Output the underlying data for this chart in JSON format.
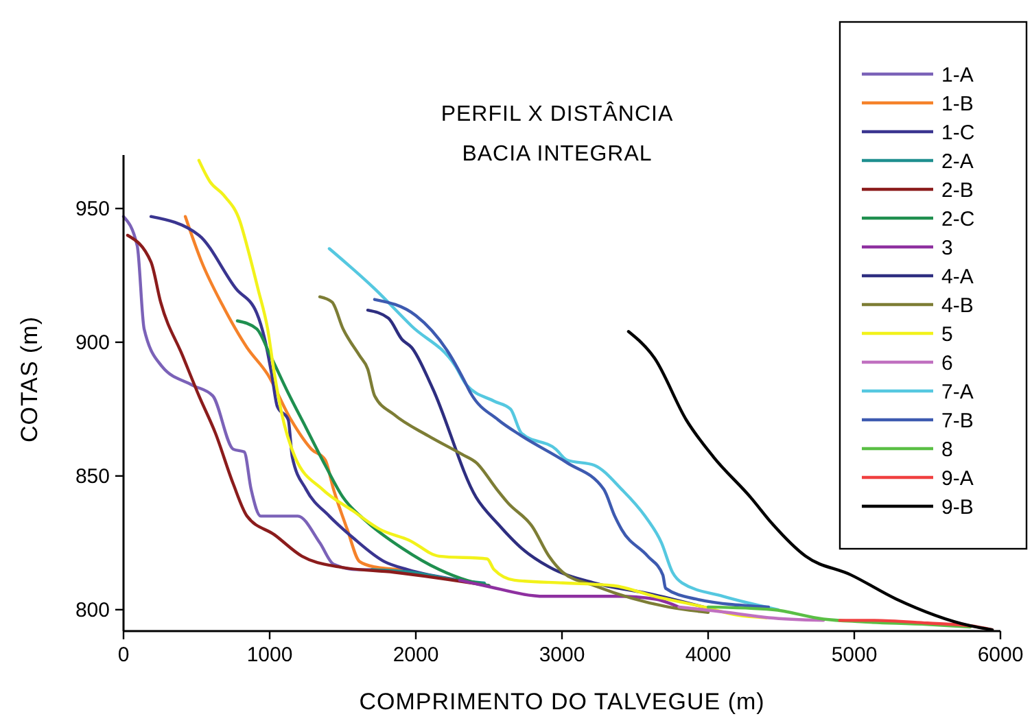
{
  "chart_data": {
    "type": "line",
    "title": "PERFIL X DISTÂNCIA",
    "subtitle": "BACIA INTEGRAL",
    "xlabel": "COMPRIMENTO DO TALVEGUE (m)",
    "ylabel": "COTAS (m)",
    "xlim": [
      0,
      6000
    ],
    "xticks": [
      0,
      1000,
      2000,
      3000,
      4000,
      5000,
      6000
    ],
    "ylim": [
      792,
      970
    ],
    "yticks": [
      800,
      850,
      900,
      950
    ],
    "grid": false,
    "legend": "top right",
    "series": [
      {
        "name": "1-A",
        "color": "#7b62b8",
        "x": [
          0,
          94,
          141,
          263,
          469,
          610,
          751,
          826,
          873,
          939,
          1192,
          1343,
          1437,
          1596,
          1906
        ],
        "values": [
          947,
          936,
          905,
          891,
          884,
          880,
          860,
          859,
          845,
          835,
          835,
          825,
          817,
          815,
          815
        ]
      },
      {
        "name": "1-B",
        "color": "#f5822a",
        "x": [
          423,
          535,
          676,
          845,
          986,
          1146,
          1286,
          1380,
          1437,
          1531,
          1615,
          1718,
          1906
        ],
        "values": [
          947,
          930,
          914,
          898,
          888,
          871,
          860,
          856,
          845,
          830,
          818,
          816,
          815
        ]
      },
      {
        "name": "1-C",
        "color": "#3a3590",
        "x": [
          188,
          516,
          770,
          911,
          967,
          1014,
          1052,
          1127,
          1155,
          1249,
          1408,
          1568,
          1784,
          1944,
          2300
        ],
        "values": [
          947,
          940,
          920,
          911,
          901,
          888,
          876,
          871,
          857,
          845,
          835,
          827,
          818,
          815,
          811
        ]
      },
      {
        "name": "2-A",
        "color": "#1f8f8f",
        "x": [
          1700,
          1972,
          2282,
          2469
        ],
        "values": [
          815,
          814,
          811,
          810
        ]
      },
      {
        "name": "2-B",
        "color": "#8b1c1c",
        "x": [
          28,
          188,
          254,
          404,
          516,
          629,
          751,
          845,
          1033,
          1221,
          1474,
          1850,
          2500
        ],
        "values": [
          940,
          930,
          915,
          895,
          880,
          866,
          847,
          835,
          828,
          820,
          816,
          814,
          809
        ]
      },
      {
        "name": "2-C",
        "color": "#1f8f4f",
        "x": [
          779,
          911,
          1005,
          1127,
          1249,
          1380,
          1502,
          1662,
          1906,
          2160,
          2347,
          2500
        ],
        "values": [
          908,
          905,
          895,
          881,
          868,
          854,
          842,
          833,
          823,
          815,
          811,
          809
        ]
      },
      {
        "name": "3",
        "color": "#8e30a0",
        "x": [
          2300,
          2469,
          2882,
          3380,
          3634,
          3800
        ],
        "values": [
          811,
          809,
          805,
          805,
          804,
          801
        ]
      },
      {
        "name": "4-A",
        "color": "#2e2e80",
        "x": [
          1671,
          1812,
          1906,
          1972,
          2113,
          2413,
          2563,
          2723,
          2911,
          3221,
          3596,
          4038
        ],
        "values": [
          912,
          909,
          901,
          898,
          883,
          842,
          832,
          823,
          816,
          810,
          806,
          800
        ]
      },
      {
        "name": "4-B",
        "color": "#7d7d35",
        "x": [
          1343,
          1427,
          1502,
          1615,
          1671,
          1718,
          1850,
          2085,
          2319,
          2413,
          2554,
          2629,
          2798,
          2911,
          3005,
          3221,
          3728,
          4000
        ],
        "values": [
          917,
          915,
          905,
          895,
          890,
          880,
          873,
          865,
          858,
          855,
          845,
          840,
          831,
          820,
          814,
          809,
          801,
          799
        ]
      },
      {
        "name": "5",
        "color": "#f2f21a",
        "x": [
          516,
          592,
          685,
          798,
          845,
          920,
          986,
          1033,
          1080,
          1174,
          1361,
          1568,
          1756,
          1953,
          2160,
          2488,
          2535,
          2676,
          3005,
          3352,
          3634,
          3972,
          4197,
          4400
        ],
        "values": [
          968,
          960,
          955,
          945,
          936,
          920,
          905,
          888,
          874,
          857,
          845,
          837,
          830,
          826,
          820,
          819,
          815,
          811,
          810,
          809,
          805,
          801,
          798,
          797
        ]
      },
      {
        "name": "6",
        "color": "#c070c0",
        "x": [
          3800,
          4131,
          4413,
          4789
        ],
        "values": [
          801,
          799,
          797,
          796
        ]
      },
      {
        "name": "7-A",
        "color": "#55c8e0",
        "x": [
          1408,
          1718,
          1972,
          2272,
          2347,
          2535,
          2648,
          2723,
          2958,
          3033,
          3221,
          3408,
          3568,
          3681,
          3756,
          3822,
          4103,
          4479
        ],
        "values": [
          935,
          920,
          906,
          891,
          884,
          878,
          875,
          866,
          860,
          856,
          854,
          845,
          835,
          825,
          814,
          810,
          805,
          800
        ]
      },
      {
        "name": "7-B",
        "color": "#3d5ab0",
        "x": [
          1718,
          2000,
          2225,
          2328,
          2375,
          2563,
          2723,
          3033,
          3286,
          3361,
          3408,
          3587,
          3690,
          3709,
          3915,
          4413
        ],
        "values": [
          916,
          910,
          896,
          886,
          881,
          871,
          865,
          855,
          845,
          835,
          830,
          820,
          813,
          808,
          804,
          801
        ]
      },
      {
        "name": "8",
        "color": "#5abf45",
        "x": [
          4000,
          4441,
          4789,
          5042,
          5500,
          5793
        ],
        "values": [
          801,
          800,
          796.5,
          795.5,
          794.5,
          793.5
        ]
      },
      {
        "name": "9-A",
        "color": "#f04040",
        "x": [
          4900,
          5136,
          5500,
          5793,
          5944
        ],
        "values": [
          796,
          796,
          795,
          794,
          792.5
        ]
      },
      {
        "name": "9-B",
        "color": "#000000",
        "x": [
          3455,
          3634,
          3850,
          4038,
          4291,
          4441,
          4667,
          4977,
          5286,
          5793,
          5944
        ],
        "values": [
          904,
          894,
          871,
          857,
          842,
          832,
          820,
          813,
          804,
          794,
          792.5
        ]
      }
    ]
  }
}
